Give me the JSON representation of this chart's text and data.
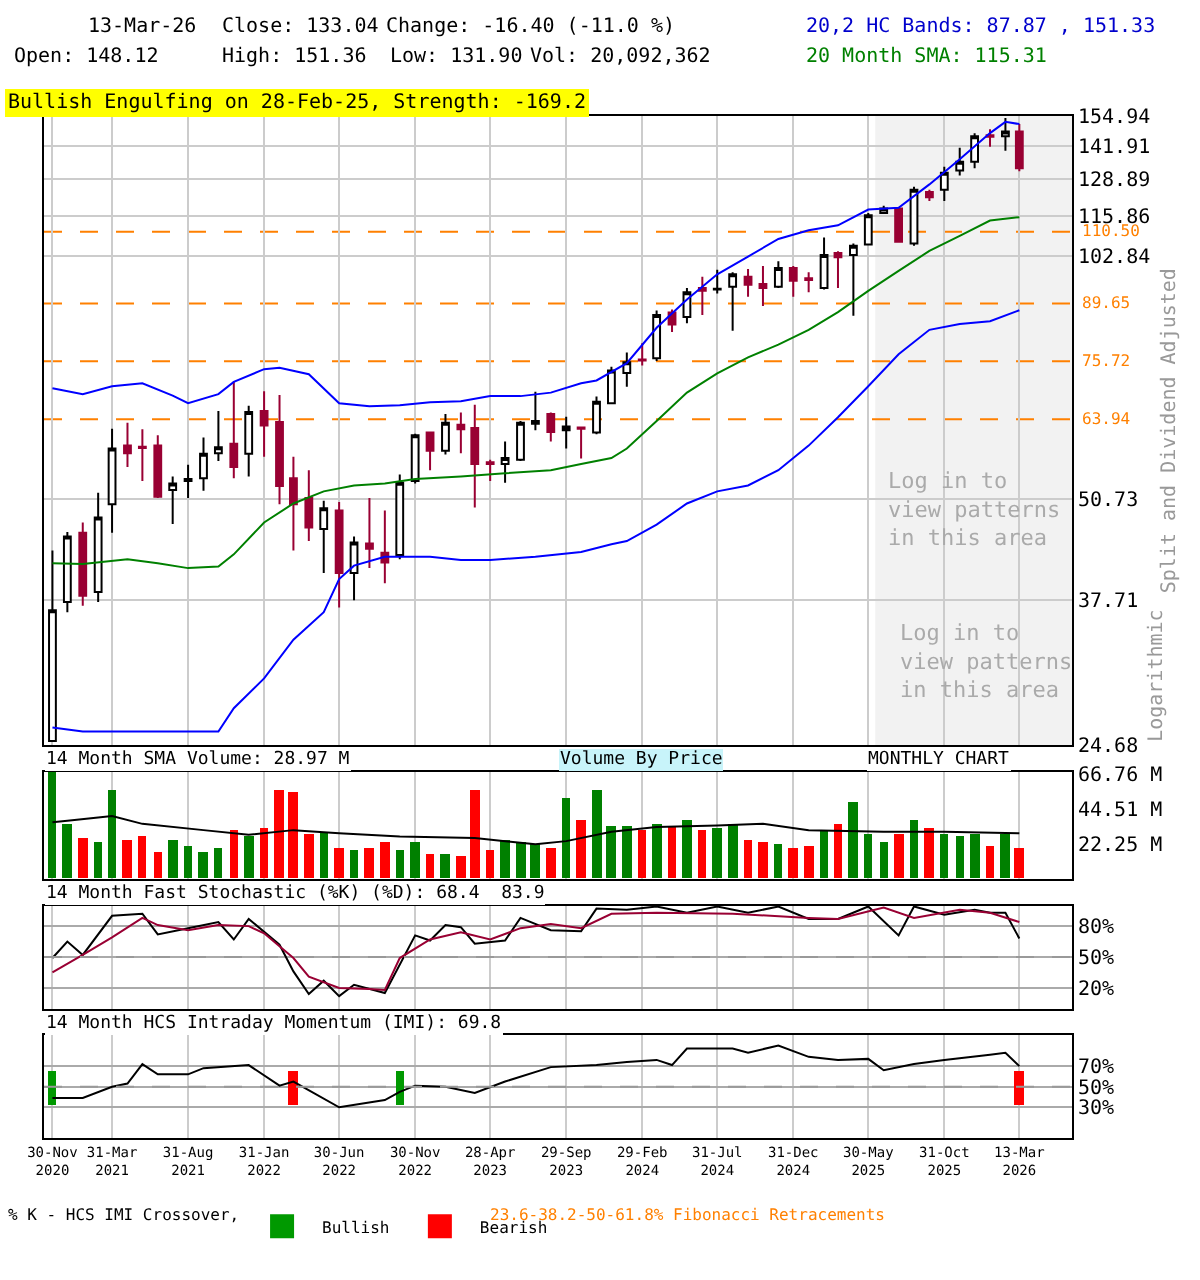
{
  "chart_data": [
    {
      "type": "candlestick",
      "x": [
        "2020-11",
        "2020-12",
        "2021-01",
        "2021-02",
        "2021-03",
        "2021-04",
        "2021-05",
        "2021-06",
        "2021-07",
        "2021-08",
        "2021-09",
        "2021-10",
        "2021-11",
        "2021-12",
        "2022-01",
        "2022-02",
        "2022-03",
        "2022-04",
        "2022-05",
        "2022-06",
        "2022-07",
        "2022-08",
        "2022-09",
        "2022-10",
        "2022-11",
        "2022-12",
        "2023-01",
        "2023-02",
        "2023-03",
        "2023-04",
        "2023-05",
        "2023-06",
        "2023-07",
        "2023-08",
        "2023-09",
        "2023-10",
        "2023-11",
        "2023-12",
        "2024-01",
        "2024-02",
        "2024-03",
        "2024-04",
        "2024-05",
        "2024-06",
        "2024-07",
        "2024-08",
        "2024-09",
        "2024-10",
        "2024-11",
        "2024-12",
        "2025-01",
        "2025-02",
        "2025-03",
        "2025-04",
        "2025-05",
        "2025-06",
        "2025-07",
        "2025-08",
        "2025-09",
        "2025-10",
        "2025-11",
        "2025-12",
        "2026-01",
        "2026-02",
        "2026-03"
      ],
      "ohlc": [
        [
          25.0,
          43.6,
          25.0,
          36.6
        ],
        [
          37.5,
          46.0,
          36.4,
          45.4
        ],
        [
          45.9,
          47.3,
          37.1,
          38.2
        ],
        [
          38.6,
          51.6,
          37.5,
          48.0
        ],
        [
          49.9,
          62.2,
          45.9,
          58.7
        ],
        [
          59.2,
          63.3,
          55.6,
          57.9
        ],
        [
          59.0,
          62.1,
          53.4,
          58.8
        ],
        [
          59.2,
          61.0,
          50.8,
          51.0
        ],
        [
          52.0,
          54.1,
          47.1,
          53.0
        ],
        [
          53.4,
          56.0,
          50.8,
          53.7
        ],
        [
          53.8,
          60.6,
          51.9,
          57.8
        ],
        [
          57.9,
          65.5,
          56.6,
          58.9
        ],
        [
          59.5,
          71.4,
          53.8,
          55.6
        ],
        [
          57.8,
          66.5,
          54.1,
          65.3
        ],
        [
          65.5,
          69.4,
          57.3,
          62.8
        ],
        [
          63.4,
          68.6,
          49.9,
          52.6
        ],
        [
          53.8,
          57.3,
          43.6,
          49.9
        ],
        [
          50.8,
          55.1,
          44.8,
          46.6
        ],
        [
          46.4,
          50.4,
          40.8,
          49.3
        ],
        [
          49.0,
          50.2,
          36.9,
          40.8
        ],
        [
          40.8,
          45.4,
          37.7,
          44.6
        ],
        [
          44.5,
          50.8,
          41.4,
          43.8
        ],
        [
          43.3,
          49.0,
          39.6,
          42.1
        ],
        [
          43.0,
          54.4,
          42.5,
          53.1
        ],
        [
          53.4,
          61.3,
          53.0,
          61.0
        ],
        [
          61.5,
          61.6,
          55.1,
          58.3
        ],
        [
          58.3,
          64.9,
          57.7,
          63.3
        ],
        [
          62.9,
          65.2,
          57.9,
          62.1
        ],
        [
          62.3,
          66.7,
          49.4,
          56.1
        ],
        [
          56.4,
          56.8,
          53.4,
          56.1
        ],
        [
          56.1,
          59.9,
          53.1,
          57.1
        ],
        [
          56.8,
          63.6,
          56.6,
          63.3
        ],
        [
          63.1,
          69.3,
          61.9,
          63.6
        ],
        [
          64.9,
          65.2,
          59.9,
          61.6
        ],
        [
          61.9,
          64.4,
          58.7,
          62.6
        ],
        [
          62.4,
          62.6,
          57.0,
          62.2
        ],
        [
          61.5,
          68.3,
          61.2,
          67.3
        ],
        [
          67.0,
          74.5,
          67.0,
          73.7
        ],
        [
          73.2,
          77.7,
          70.3,
          75.5
        ],
        [
          76.1,
          79.8,
          74.8,
          75.9
        ],
        [
          76.4,
          87.8,
          75.8,
          86.7
        ],
        [
          87.3,
          88.1,
          82.5,
          84.3
        ],
        [
          86.2,
          93.8,
          84.6,
          92.6
        ],
        [
          93.8,
          96.9,
          86.7,
          93.0
        ],
        [
          93.4,
          98.9,
          92.3,
          93.6
        ],
        [
          94.1,
          98.2,
          82.8,
          97.6
        ],
        [
          96.9,
          99.1,
          91.4,
          94.7
        ],
        [
          94.9,
          100.0,
          89.0,
          93.8
        ],
        [
          94.1,
          101.4,
          93.8,
          99.4
        ],
        [
          99.4,
          100.0,
          91.4,
          95.8
        ],
        [
          96.5,
          98.2,
          92.6,
          96.0
        ],
        [
          93.8,
          108.7,
          93.4,
          103.3
        ],
        [
          103.9,
          104.4,
          93.8,
          102.6
        ],
        [
          103.3,
          106.8,
          86.5,
          106.1
        ],
        [
          106.5,
          116.7,
          106.5,
          116.0
        ],
        [
          116.7,
          119.2,
          116.7,
          118.3
        ],
        [
          118.3,
          118.3,
          107.3,
          107.3
        ],
        [
          106.8,
          126.0,
          106.1,
          124.9
        ],
        [
          124.1,
          124.9,
          120.9,
          122.2
        ],
        [
          124.9,
          133.6,
          120.9,
          131.3
        ],
        [
          132.2,
          141.2,
          130.2,
          135.6
        ],
        [
          135.6,
          147.3,
          133.0,
          146.0
        ],
        [
          146.5,
          149.1,
          141.6,
          145.8
        ],
        [
          146.0,
          154.0,
          140.0,
          148.1
        ],
        [
          148.12,
          151.36,
          131.9,
          133.04
        ]
      ],
      "series": [
        {
          "type": "line",
          "color": "#0000ff",
          "x": [
            "2020-11",
            "2021-01",
            "2021-03",
            "2021-05",
            "2021-07",
            "2021-08",
            "2021-10",
            "2021-11",
            "2022-01",
            "2022-02",
            "2022-04",
            "2022-06",
            "2022-08",
            "2022-10",
            "2022-12",
            "2023-02",
            "2023-04",
            "2023-06",
            "2023-08",
            "2023-10",
            "2023-11",
            "2024-01",
            "2024-03",
            "2024-05",
            "2024-07",
            "2024-09",
            "2024-11",
            "2025-01",
            "2025-03",
            "2025-05",
            "2025-07",
            "2025-09",
            "2025-11",
            "2026-01",
            "2026-02",
            "2026-03"
          ],
          "values": [
            70.0,
            68.8,
            70.4,
            71.0,
            68.5,
            67.0,
            68.8,
            71.3,
            74.0,
            74.3,
            72.9,
            67.0,
            66.4,
            66.6,
            67.2,
            67.4,
            68.4,
            68.4,
            69.1,
            71.0,
            71.6,
            75.3,
            83.5,
            90.7,
            97.6,
            102.8,
            108.2,
            111.0,
            112.6,
            117.9,
            118.5,
            126.9,
            136.6,
            147.4,
            152.3,
            151.33
          ]
        },
        {
          "type": "line",
          "color": "#0000ff",
          "x": [
            "2020-11",
            "2021-01",
            "2021-10",
            "2021-11",
            "2022-01",
            "2022-03",
            "2022-05",
            "2022-06",
            "2022-07",
            "2022-09",
            "2022-12",
            "2023-02",
            "2023-04",
            "2023-07",
            "2023-10",
            "2023-12",
            "2024-01",
            "2024-03",
            "2024-05",
            "2024-07",
            "2024-09",
            "2024-11",
            "2025-01",
            "2025-03",
            "2025-05",
            "2025-07",
            "2025-09",
            "2025-11",
            "2026-01",
            "2026-03"
          ],
          "values": [
            26.0,
            25.7,
            25.7,
            27.5,
            30.0,
            33.6,
            36.4,
            40.1,
            41.7,
            42.8,
            42.8,
            42.4,
            42.4,
            42.8,
            43.4,
            44.4,
            44.8,
            47.0,
            50.0,
            51.8,
            52.7,
            55.1,
            59.2,
            64.3,
            70.4,
            77.3,
            83.0,
            84.4,
            85.1,
            87.87
          ]
        },
        {
          "type": "line",
          "color": "#008000",
          "x": [
            "2020-11",
            "2021-01",
            "2021-04",
            "2021-06",
            "2021-08",
            "2021-10",
            "2021-11",
            "2022-01",
            "2022-03",
            "2022-05",
            "2022-07",
            "2022-09",
            "2022-11",
            "2023-02",
            "2023-05",
            "2023-08",
            "2023-10",
            "2023-12",
            "2024-01",
            "2024-03",
            "2024-05",
            "2024-07",
            "2024-09",
            "2024-11",
            "2025-01",
            "2025-03",
            "2025-05",
            "2025-07",
            "2025-09",
            "2025-11",
            "2026-01",
            "2026-03"
          ],
          "values": [
            42.0,
            41.9,
            42.5,
            42.0,
            41.4,
            41.6,
            43.1,
            47.3,
            50.0,
            51.8,
            52.7,
            53.0,
            53.7,
            54.1,
            54.6,
            55.1,
            56.1,
            57.1,
            58.7,
            63.6,
            69.1,
            73.1,
            76.6,
            79.5,
            83.0,
            87.4,
            93.0,
            98.6,
            104.5,
            109.2,
            114.2,
            115.31
          ]
        }
      ],
      "log": true,
      "ylim": [
        24.68,
        154.94
      ],
      "yticks": [
        24.68,
        37.71,
        50.73,
        102.84,
        115.86,
        128.89,
        141.91,
        154.94
      ],
      "xlim": [
        "2020-10-15",
        "2026-06-15"
      ],
      "xticks": [
        {
          "value": "2020-11",
          "label": "30-Nov\n2020"
        },
        {
          "value": "2021-03",
          "label": "31-Mar\n2021"
        },
        {
          "value": "2021-08",
          "label": "31-Aug\n2021"
        },
        {
          "value": "2022-01",
          "label": "31-Jan\n2022"
        },
        {
          "value": "2022-06",
          "label": "30-Jun\n2022"
        },
        {
          "value": "2022-11",
          "label": "30-Nov\n2022"
        },
        {
          "value": "2023-04",
          "label": "28-Apr\n2023"
        },
        {
          "value": "2023-09",
          "label": "29-Sep\n2023"
        },
        {
          "value": "2024-02",
          "label": "29-Feb\n2024"
        },
        {
          "value": "2024-07",
          "label": "31-Jul\n2024"
        },
        {
          "value": "2024-12",
          "label": "31-Dec\n2024"
        },
        {
          "value": "2025-05",
          "label": "30-May\n2025"
        },
        {
          "value": "2025-10",
          "label": "31-Oct\n2025"
        },
        {
          "value": "2026-03",
          "label": "13-Mar\n2026"
        }
      ],
      "tick_labels": "y",
      "grid": true,
      "ylabel": "Split and Dividend Adjusted",
      "ref_lines": [
        {
          "axis": "y",
          "value": 110.5,
          "label": "110.50",
          "color": "#ff8000",
          "line_style": "dashed"
        },
        {
          "axis": "y",
          "value": 89.65,
          "label": "89.65",
          "color": "#ff8000",
          "line_style": "dashed"
        },
        {
          "axis": "y",
          "value": 75.72,
          "label": "75.72",
          "color": "#ff8000",
          "line_style": "dashed"
        },
        {
          "axis": "y",
          "value": 63.94,
          "label": "63.94",
          "color": "#ff8000",
          "line_style": "dashed"
        }
      ],
      "bands": [
        {
          "axis": "x",
          "from": "2025-05-15",
          "to": "2026-06-15",
          "label": "Log in to view patterns in this area",
          "color": "#f2f2f2"
        }
      ],
      "annotations": [
        "13-Mar-26",
        "Close: 133.04",
        "Change: -16.40 (-11.0 %)",
        "Open: 148.12",
        "High: 151.36",
        "Low: 131.90",
        "Vol: 20,092,362",
        "20,2 HC Bands: 87.87 , 151.33",
        "20 Month SMA: 115.31",
        "Bullish Engulfing on 28-Feb-25, Strength: -169.2",
        "Logarithmic",
        "% K - HCS IMI Crossover,",
        "23.6-38.2-50-61.8% Fibonacci Retracements",
        "Log in to view patterns in this area"
      ]
    },
    {
      "type": "bar",
      "x": [
        "2020-11",
        "2020-12",
        "2021-01",
        "2021-02",
        "2021-03",
        "2021-04",
        "2021-05",
        "2021-06",
        "2021-07",
        "2021-08",
        "2021-09",
        "2021-10",
        "2021-11",
        "2021-12",
        "2022-01",
        "2022-02",
        "2022-03",
        "2022-04",
        "2022-05",
        "2022-06",
        "2022-07",
        "2022-08",
        "2022-09",
        "2022-10",
        "2022-11",
        "2022-12",
        "2023-01",
        "2023-02",
        "2023-03",
        "2023-04",
        "2023-05",
        "2023-06",
        "2023-07",
        "2023-08",
        "2023-09",
        "2023-10",
        "2023-11",
        "2023-12",
        "2024-01",
        "2024-02",
        "2024-03",
        "2024-04",
        "2024-05",
        "2024-06",
        "2024-07",
        "2024-08",
        "2024-09",
        "2024-10",
        "2024-11",
        "2024-12",
        "2025-01",
        "2025-02",
        "2025-03",
        "2025-04",
        "2025-05",
        "2025-06",
        "2025-07",
        "2025-08",
        "2025-09",
        "2025-10",
        "2025-11",
        "2025-12",
        "2026-01",
        "2026-02",
        "2026-03"
      ],
      "series": [
        {
          "type": "bar",
          "values": [
            68,
            35,
            26,
            23,
            57,
            25,
            27,
            17,
            25,
            21,
            17,
            20,
            31,
            27,
            32,
            56,
            55,
            28,
            30,
            20,
            18,
            20,
            23,
            18,
            24,
            16,
            16,
            14,
            56,
            18,
            25,
            23,
            22,
            19,
            52,
            38,
            56,
            33,
            33,
            31,
            35,
            34,
            38,
            31,
            32,
            35,
            25,
            24,
            22,
            20,
            21,
            31,
            35,
            49,
            29,
            24,
            28,
            38,
            32,
            29,
            27,
            29,
            21,
            29,
            20
          ],
          "colors": [
            "#008000",
            "#008000",
            "#ff0000",
            "#008000",
            "#008000",
            "#ff0000",
            "#ff0000",
            "#ff0000",
            "#008000",
            "#008000",
            "#008000",
            "#008000",
            "#ff0000",
            "#008000",
            "#ff0000",
            "#ff0000",
            "#ff0000",
            "#ff0000",
            "#008000",
            "#ff0000",
            "#008000",
            "#ff0000",
            "#ff0000",
            "#008000",
            "#008000",
            "#ff0000",
            "#008000",
            "#ff0000",
            "#ff0000",
            "#ff0000",
            "#008000",
            "#008000",
            "#008000",
            "#ff0000",
            "#008000",
            "#ff0000",
            "#008000",
            "#008000",
            "#008000",
            "#ff0000",
            "#008000",
            "#ff0000",
            "#008000",
            "#ff0000",
            "#008000",
            "#008000",
            "#ff0000",
            "#ff0000",
            "#008000",
            "#ff0000",
            "#ff0000",
            "#008000",
            "#ff0000",
            "#008000",
            "#008000",
            "#008000",
            "#ff0000",
            "#008000",
            "#ff0000",
            "#008000",
            "#008000",
            "#008000",
            "#ff0000",
            "#008000",
            "#ff0000"
          ]
        },
        {
          "type": "line",
          "color": "#000000",
          "x": [
            "2020-11",
            "2020-12",
            "2021-02",
            "2021-03",
            "2021-05",
            "2021-09",
            "2021-12",
            "2022-03",
            "2022-06",
            "2022-10",
            "2023-03",
            "2023-07",
            "2023-09",
            "2023-12",
            "2024-03",
            "2024-07",
            "2024-10",
            "2025-01",
            "2025-06",
            "2025-10",
            "2026-03"
          ],
          "values": [
            36,
            37,
            39,
            40,
            35,
            31,
            28,
            31,
            29,
            27,
            26,
            22,
            24,
            30,
            33,
            34,
            35,
            31,
            30,
            30,
            29
          ]
        }
      ],
      "ylim": [
        0,
        68
      ],
      "yticks": [
        {
          "value": 22.25,
          "label": "22.25 M"
        },
        {
          "value": 44.51,
          "label": "44.51 M"
        },
        {
          "value": 66.76,
          "label": "66.76 M"
        }
      ],
      "xlim": [
        "2020-10-15",
        "2026-06-15"
      ],
      "xticks": [
        {
          "value": "2020-11",
          "label": "30-Nov\n2020"
        },
        {
          "value": "2021-03",
          "label": "31-Mar\n2021"
        },
        {
          "value": "2021-08",
          "label": "31-Aug\n2021"
        },
        {
          "value": "2022-01",
          "label": "31-Jan\n2022"
        },
        {
          "value": "2022-06",
          "label": "30-Jun\n2022"
        },
        {
          "value": "2022-11",
          "label": "30-Nov\n2022"
        },
        {
          "value": "2023-04",
          "label": "28-Apr\n2023"
        },
        {
          "value": "2023-09",
          "label": "29-Sep\n2023"
        },
        {
          "value": "2024-02",
          "label": "29-Feb\n2024"
        },
        {
          "value": "2024-07",
          "label": "31-Jul\n2024"
        },
        {
          "value": "2024-12",
          "label": "31-Dec\n2024"
        },
        {
          "value": "2025-05",
          "label": "30-May\n2025"
        },
        {
          "value": "2025-10",
          "label": "31-Oct\n2025"
        },
        {
          "value": "2026-03",
          "label": "13-Mar\n2026"
        }
      ],
      "tick_labels": "y",
      "grid": "x",
      "annotations": [
        "14 Month SMA Volume: 28.97 M",
        "Volume By Price",
        "MONTHLY CHART"
      ]
    },
    {
      "type": "line",
      "series": [
        {
          "color": "#000000",
          "x": [
            "2020-11",
            "2020-12",
            "2021-01",
            "2021-03",
            "2021-05",
            "2021-06",
            "2021-08",
            "2021-10",
            "2021-11",
            "2021-12",
            "2022-02",
            "2022-03",
            "2022-04",
            "2022-05",
            "2022-06",
            "2022-07",
            "2022-09",
            "2022-11",
            "2022-12",
            "2023-01",
            "2023-02",
            "2023-03",
            "2023-05",
            "2023-06",
            "2023-08",
            "2023-10",
            "2023-11",
            "2024-01",
            "2024-03",
            "2024-05",
            "2024-07",
            "2024-09",
            "2024-11",
            "2025-01",
            "2025-03",
            "2025-05",
            "2025-07",
            "2025-08",
            "2025-10",
            "2025-12",
            "2026-01",
            "2026-02",
            "2026-03"
          ],
          "values": [
            49,
            65,
            52,
            90,
            92,
            72,
            78,
            84,
            67,
            87,
            62,
            36,
            14,
            27,
            12,
            23,
            15,
            71,
            66,
            81,
            79,
            63,
            66,
            88,
            76,
            75,
            97,
            96,
            99,
            93,
            99,
            93,
            99,
            87,
            87,
            99,
            71,
            99,
            91,
            96,
            93,
            93,
            68
          ]
        },
        {
          "color": "#990033",
          "x": [
            "2020-11",
            "2021-01",
            "2021-03",
            "2021-05",
            "2021-06",
            "2021-08",
            "2021-10",
            "2021-12",
            "2022-01",
            "2022-03",
            "2022-04",
            "2022-06",
            "2022-08",
            "2022-09",
            "2022-10",
            "2022-12",
            "2023-02",
            "2023-04",
            "2023-06",
            "2023-08",
            "2023-10",
            "2023-12",
            "2024-03",
            "2024-08",
            "2025-01",
            "2025-03",
            "2025-06",
            "2025-08",
            "2025-11",
            "2026-01",
            "2026-03"
          ],
          "values": [
            35,
            52,
            69,
            88,
            81,
            76,
            81,
            80,
            73,
            49,
            31,
            20,
            19,
            18,
            49,
            67,
            74,
            67,
            78,
            82,
            78,
            92,
            93,
            92,
            88,
            87,
            98,
            88,
            96,
            93,
            84
          ]
        }
      ],
      "ylim": [
        0,
        100
      ],
      "yticks": [
        {
          "value": 20,
          "label": "20%"
        },
        {
          "value": 50,
          "label": "50%"
        },
        {
          "value": 80,
          "label": "80%"
        }
      ],
      "xlim": [
        "2020-10-15",
        "2026-06-15"
      ],
      "xticks": [
        {
          "value": "2020-11",
          "label": "30-Nov\n2020"
        },
        {
          "value": "2021-03",
          "label": "31-Mar\n2021"
        },
        {
          "value": "2021-08",
          "label": "31-Aug\n2021"
        },
        {
          "value": "2022-01",
          "label": "31-Jan\n2022"
        },
        {
          "value": "2022-06",
          "label": "30-Jun\n2022"
        },
        {
          "value": "2022-11",
          "label": "30-Nov\n2022"
        },
        {
          "value": "2023-04",
          "label": "28-Apr\n2023"
        },
        {
          "value": "2023-09",
          "label": "29-Sep\n2023"
        },
        {
          "value": "2024-02",
          "label": "29-Feb\n2024"
        },
        {
          "value": "2024-07",
          "label": "31-Jul\n2024"
        },
        {
          "value": "2024-12",
          "label": "31-Dec\n2024"
        },
        {
          "value": "2025-05",
          "label": "30-May\n2025"
        },
        {
          "value": "2025-10",
          "label": "31-Oct\n2025"
        },
        {
          "value": "2026-03",
          "label": "13-Mar\n2026"
        }
      ],
      "tick_labels": "y",
      "grid": true,
      "ref_lines": [
        {
          "axis": "y",
          "value": 50,
          "color": "#999999",
          "line_style": "dashed"
        }
      ],
      "annotations": [
        "14 Month Fast Stochastic (%K) (%D): 68.4  83.9"
      ]
    },
    {
      "type": "line",
      "series": [
        {
          "color": "#000000",
          "x": [
            "2020-11",
            "2021-01",
            "2021-03",
            "2021-04",
            "2021-05",
            "2021-06",
            "2021-08",
            "2021-09",
            "2021-12",
            "2022-02",
            "2022-03",
            "2022-06",
            "2022-09",
            "2022-10",
            "2022-11",
            "2023-01",
            "2023-03",
            "2023-05",
            "2023-08",
            "2023-11",
            "2024-01",
            "2024-03",
            "2024-04",
            "2024-05",
            "2024-08",
            "2024-09",
            "2024-11",
            "2025-01",
            "2025-03",
            "2025-05",
            "2025-06",
            "2025-08",
            "2025-10",
            "2026-01",
            "2026-02",
            "2026-03"
          ],
          "values": [
            39,
            39,
            50,
            53,
            72,
            62,
            62,
            68,
            71,
            51,
            55,
            30,
            37,
            45,
            51,
            50,
            44,
            55,
            69,
            71,
            74,
            76,
            71,
            87,
            87,
            83,
            90,
            79,
            76,
            77,
            66,
            72,
            76,
            81,
            83,
            70
          ]
        },
        {
          "type": "bar",
          "name": "Bullish",
          "color": "#009900",
          "x": [
            "2020-11",
            "2022-10"
          ],
          "values": [
            34,
            34
          ],
          "base": [
            32,
            32
          ]
        },
        {
          "type": "bar",
          "name": "Bearish",
          "color": "#ff0000",
          "x": [
            "2022-03",
            "2026-03"
          ],
          "values": [
            34,
            34
          ],
          "base": [
            32,
            32
          ]
        }
      ],
      "ylim": [
        0,
        100
      ],
      "yticks": [
        {
          "value": 30,
          "label": "30%"
        },
        {
          "value": 50,
          "label": "50%"
        },
        {
          "value": 70,
          "label": "70%"
        }
      ],
      "xlim": [
        "2020-10-15",
        "2026-06-15"
      ],
      "xticks": [
        {
          "value": "2020-11",
          "label": "30-Nov\n2020"
        },
        {
          "value": "2021-03",
          "label": "31-Mar\n2021"
        },
        {
          "value": "2021-08",
          "label": "31-Aug\n2021"
        },
        {
          "value": "2022-01",
          "label": "31-Jan\n2022"
        },
        {
          "value": "2022-06",
          "label": "30-Jun\n2022"
        },
        {
          "value": "2022-11",
          "label": "30-Nov\n2022"
        },
        {
          "value": "2023-04",
          "label": "28-Apr\n2023"
        },
        {
          "value": "2023-09",
          "label": "29-Sep\n2023"
        },
        {
          "value": "2024-02",
          "label": "29-Feb\n2024"
        },
        {
          "value": "2024-07",
          "label": "31-Jul\n2024"
        },
        {
          "value": "2024-12",
          "label": "31-Dec\n2024"
        },
        {
          "value": "2025-05",
          "label": "30-May\n2025"
        },
        {
          "value": "2025-10",
          "label": "31-Oct\n2025"
        },
        {
          "value": "2026-03",
          "label": "13-Mar\n2026"
        }
      ],
      "grid": true,
      "legend": "bottom",
      "ref_lines": [
        {
          "axis": "y",
          "value": 50,
          "color": "#999999",
          "line_style": "dashed"
        }
      ],
      "annotations": [
        "14 Month HCS Intraday Momentum (IMI): 69.8"
      ]
    }
  ]
}
